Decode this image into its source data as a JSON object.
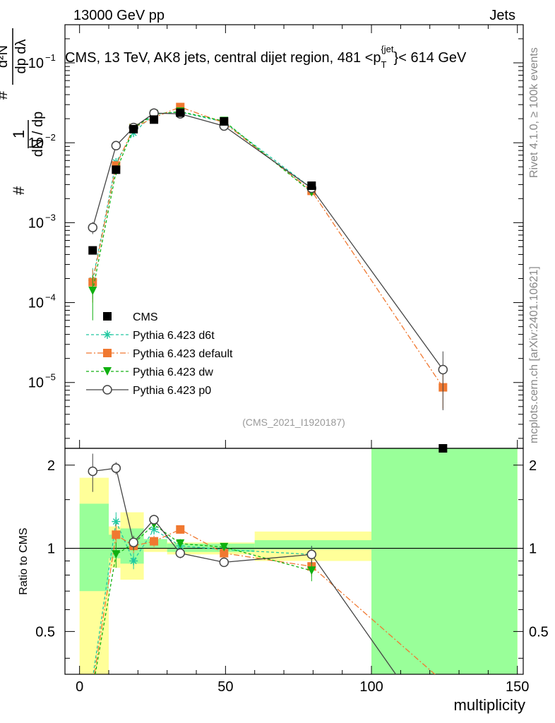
{
  "header": {
    "left": "13000 GeV pp",
    "right": "Jets"
  },
  "side_labels": {
    "rivet": "Rivet 4.1.0, ≥ 100k events",
    "mcplots": "mcplots.cern.ch [arXiv:2401.10621]"
  },
  "chart_data": {
    "type": "line",
    "title": "CMS, 13 TeV, AK8 jets, central dijet region, 481 <p_T^{jet}< 614 GeV",
    "title_parts": {
      "main": "CMS, 13 TeV, AK8 jets, central dijet region, 481 <p",
      "sub": "T",
      "sup": "{jet",
      "tail": "}< 614 GeV"
    },
    "xlabel": "multiplicity",
    "ylabel_top": "1/σ dσ/dλ",
    "ylabel_bottom": "Ratio to CMS",
    "analysis_id": "(CMS_2021_I1920187)",
    "xlim": [
      -5,
      152
    ],
    "ylim_top": [
      1.5e-06,
      0.3
    ],
    "yscale_top": "log",
    "ylim_bottom": [
      0.35,
      2.3
    ],
    "yscale_bottom": "log",
    "x_ticks": [
      0,
      50,
      100,
      150
    ],
    "y_ticks_top": [
      {
        "value": 1e-05,
        "base": "10",
        "exp": "−5"
      },
      {
        "value": 0.0001,
        "base": "10",
        "exp": "−4"
      },
      {
        "value": 0.001,
        "base": "10",
        "exp": "−3"
      },
      {
        "value": 0.01,
        "base": "10",
        "exp": "−2"
      },
      {
        "value": 0.1,
        "base": "10",
        "exp": "−1"
      }
    ],
    "y_ticks_bottom": [
      {
        "value": 0.5,
        "label": "0.5"
      },
      {
        "value": 1,
        "label": "1"
      },
      {
        "value": 2,
        "label": "2"
      }
    ],
    "legend_position": "lower-left",
    "cms": {
      "name": "CMS",
      "x": [
        4.5,
        12.5,
        18.5,
        25.5,
        34.5,
        49.5,
        79.5,
        124.5
      ],
      "y": [
        0.00045,
        0.0046,
        0.0148,
        0.0195,
        0.0238,
        0.0185,
        0.0029,
        1.5e-06
      ]
    },
    "series": [
      {
        "name": "Pythia 6.423 d6t",
        "color": "#20c8a0",
        "marker": "star",
        "dash": "4,3",
        "x": [
          4.5,
          12.5,
          18.5,
          25.5,
          34.5,
          49.5,
          79.5
        ],
        "y": [
          0.00019,
          0.0057,
          0.0133,
          0.023,
          0.0242,
          0.0182,
          0.0027
        ],
        "err": [
          8e-05,
          0.0004,
          0.0007,
          0.0009,
          0.0009,
          0.0007,
          0.0002
        ]
      },
      {
        "name": "Pythia 6.423 default",
        "color": "#f07830",
        "marker": "square",
        "dash": "8,3,2,3",
        "x": [
          4.5,
          12.5,
          18.5,
          25.5,
          34.5,
          49.5,
          79.5,
          124.5
        ],
        "y": [
          0.00018,
          0.0052,
          0.0153,
          0.0207,
          0.028,
          0.0178,
          0.0025,
          8.7e-06
        ],
        "err": [
          8e-05,
          0.0004,
          0.0007,
          0.0009,
          0.0009,
          0.0007,
          0.0002,
          4e-06
        ]
      },
      {
        "name": "Pythia 6.423 dw",
        "color": "#10b010",
        "marker": "triangle-down",
        "dash": "4,3",
        "x": [
          4.5,
          12.5,
          18.5,
          25.5,
          34.5,
          49.5,
          79.5
        ],
        "y": [
          0.00014,
          0.0044,
          0.0152,
          0.0228,
          0.0245,
          0.0187,
          0.0024
        ],
        "err": [
          8e-05,
          0.0004,
          0.0007,
          0.0009,
          0.0009,
          0.0007,
          0.0002
        ]
      },
      {
        "name": "Pythia 6.423 p0",
        "color": "#444444",
        "marker": "circle",
        "dash": "",
        "x": [
          4.5,
          12.5,
          18.5,
          25.5,
          34.5,
          49.5,
          79.5,
          124.5
        ],
        "y": [
          0.00087,
          0.0092,
          0.0155,
          0.0235,
          0.023,
          0.0162,
          0.0027,
          1.45e-05
        ],
        "err": [
          0.00015,
          0.0005,
          0.0007,
          0.0009,
          0.0009,
          0.0007,
          0.0002,
          1e-05
        ]
      }
    ],
    "ratio_band": {
      "bins": [
        [
          0,
          10
        ],
        [
          10,
          14
        ],
        [
          14,
          22
        ],
        [
          22,
          30
        ],
        [
          30,
          40
        ],
        [
          40,
          60
        ],
        [
          60,
          100
        ],
        [
          100,
          150
        ]
      ],
      "stat_lo": [
        0.7,
        0.92,
        0.88,
        1.0,
        0.97,
        0.97,
        0.99,
        0.35
      ],
      "stat_hi": [
        1.45,
        1.12,
        1.18,
        1.08,
        1.04,
        1.04,
        1.07,
        2.3
      ],
      "tot_lo": [
        0.35,
        0.85,
        0.77,
        0.97,
        0.95,
        0.95,
        0.9,
        0.35
      ],
      "tot_hi": [
        1.8,
        1.2,
        1.35,
        1.08,
        1.05,
        1.05,
        1.15,
        2.3
      ]
    },
    "ratios": [
      {
        "name": "Pythia 6.423 d6t",
        "x": [
          4.5,
          12.5,
          18.5,
          25.5,
          34.5,
          49.5,
          79.5
        ],
        "y": [
          0.34,
          1.25,
          0.9,
          1.17,
          1.02,
          0.99,
          0.95
        ],
        "err": [
          0.08,
          0.1,
          0.06,
          0.05,
          0.04,
          0.03,
          0.07
        ]
      },
      {
        "name": "Pythia 6.423 default",
        "x": [
          4.5,
          12.5,
          18.5,
          25.5,
          34.5,
          49.5,
          79.5,
          124.5
        ],
        "y": [
          0.32,
          1.12,
          1.02,
          1.06,
          1.17,
          0.96,
          0.86,
          0.33
        ],
        "err": [
          0.08,
          0.1,
          0.06,
          0.05,
          0.04,
          0.03,
          0.07,
          0.1
        ]
      },
      {
        "name": "Pythia 6.423 dw",
        "x": [
          4.5,
          12.5,
          18.5,
          25.5,
          34.5,
          49.5,
          79.5
        ],
        "y": [
          0.31,
          0.95,
          1.04,
          1.22,
          1.04,
          1.01,
          0.83
        ],
        "err": [
          0.08,
          0.1,
          0.06,
          0.05,
          0.04,
          0.03,
          0.07
        ]
      },
      {
        "name": "Pythia 6.423 p0",
        "x": [
          4.5,
          12.5,
          18.5,
          25.5,
          34.5,
          49.5,
          79.5,
          124.5
        ],
        "y": [
          1.9,
          1.95,
          1.05,
          1.27,
          0.96,
          0.89,
          0.95,
          0.2
        ],
        "err": [
          0.3,
          0.1,
          0.06,
          0.05,
          0.04,
          0.03,
          0.07,
          0.1
        ]
      }
    ]
  }
}
